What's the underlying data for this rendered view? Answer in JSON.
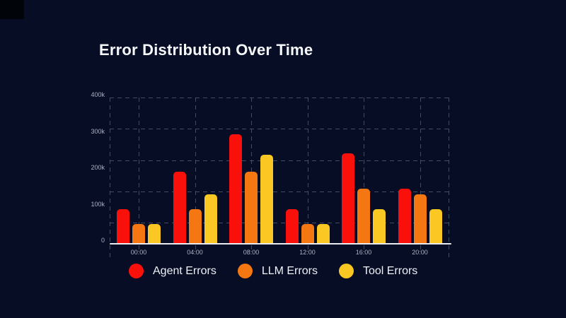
{
  "title": "Error Distribution Over Time",
  "chart_data": {
    "type": "bar",
    "title": "Error Distribution Over Time",
    "categories": [
      "00:00",
      "04:00",
      "08:00",
      "12:00",
      "16:00",
      "20:00"
    ],
    "series": [
      {
        "name": "Agent Errors",
        "color": "#fa100a",
        "values": [
          90000,
          190000,
          290000,
          90000,
          240000,
          145000
        ]
      },
      {
        "name": "LLM Errors",
        "color": "#f47712",
        "values": [
          50000,
          90000,
          190000,
          50000,
          145000,
          130000
        ]
      },
      {
        "name": "Tool Errors",
        "color": "#fbc722",
        "values": [
          50000,
          130000,
          235000,
          50000,
          90000,
          90000
        ]
      }
    ],
    "ylim": [
      0,
      400000
    ],
    "yticks": [
      "400k",
      "300k",
      "200k",
      "100k",
      "0"
    ],
    "xlabel": "",
    "ylabel": "",
    "grid": "dashed",
    "legend_position": "bottom"
  },
  "colors": {
    "background": "#060d24",
    "grid": "#4a5670",
    "axis": "#e8ebf2",
    "tick_text": "#a9b3c6",
    "title_text": "#f5f7fb",
    "legend_text": "#eef1f7"
  }
}
